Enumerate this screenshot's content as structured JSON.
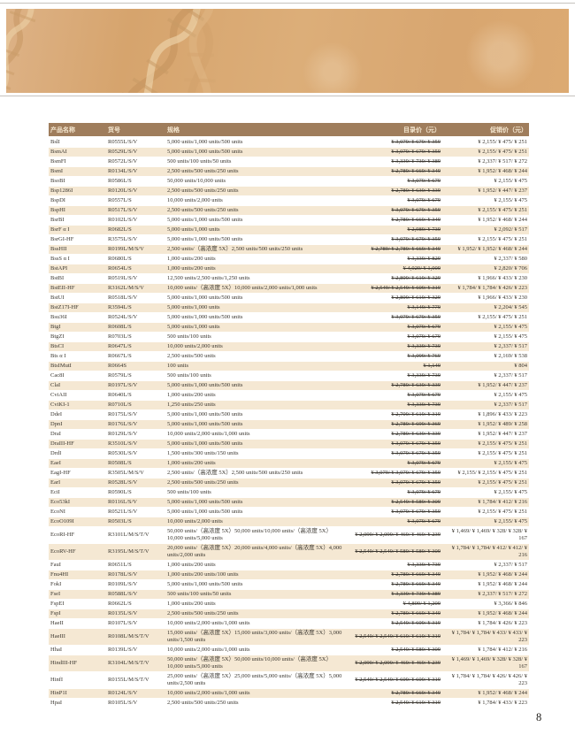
{
  "page": {
    "number": "8"
  },
  "banner": {
    "art": "dna-helix",
    "base_color": "#d9a972",
    "strand_dark": "#c2905a",
    "strand_light": "#eed4aa"
  },
  "colors": {
    "header_bg": "#9f7d5c",
    "header_text": "#f6e9d2",
    "row_alt_bg": "#f5e8d3",
    "body_text": "#3a362f",
    "rule_gray": "#c6c2bd"
  },
  "table": {
    "headers": [
      "产品名称",
      "货号",
      "规格",
      "目录价（元）",
      "促销价（元）"
    ],
    "rows": [
      {
        "name": "BslI",
        "cat": "R0555L/S/V",
        "spec": "5,000 units/1,000 units/500 units",
        "list": "¥ 3,079/ ¥ 679/ ¥ 359",
        "promo": "¥ 2,155/ ¥ 475/ ¥ 251"
      },
      {
        "name": "BsmAI",
        "cat": "R0529L/S/V",
        "spec": "5,000 units/1,000 units/500 units",
        "list": "¥ 3,079/ ¥ 679/ ¥ 359",
        "promo": "¥ 2,155/ ¥ 475/ ¥ 251"
      },
      {
        "name": "BsmFI",
        "cat": "R0572L/S/V",
        "spec": "500 units/100 units/50 units",
        "list": "¥ 3,339/ ¥ 739/ ¥ 389",
        "promo": "¥ 2,337/ ¥ 517/ ¥ 272"
      },
      {
        "name": "BsmI",
        "cat": "R0134L/S/V",
        "spec": "2,500 units/500 units/250 units",
        "list": "¥ 2,789/ ¥ 669/ ¥ 349",
        "promo": "¥ 1,952/ ¥ 468/ ¥ 244"
      },
      {
        "name": "BsoBI",
        "cat": "R0586L/S",
        "spec": "50,000 units/10,000 units",
        "list": "¥ 3,079/ ¥ 679",
        "promo": "¥ 2,155/ ¥ 475"
      },
      {
        "name": "Bsp1286I",
        "cat": "R0120L/S/V",
        "spec": "2,500 units/500 units/250 units",
        "list": "¥ 2,789/ ¥ 639/ ¥ 339",
        "promo": "¥ 1,952/ ¥ 447/ ¥ 237"
      },
      {
        "name": "BspDI",
        "cat": "R0557L/S",
        "spec": "10,000 units/2,000 units",
        "list": "¥ 3,079/ ¥ 679",
        "promo": "¥ 2,155/ ¥ 475"
      },
      {
        "name": "BspHI",
        "cat": "R0517L/S/V",
        "spec": "2,500 units/500 units/250 units",
        "list": "¥ 3,079/ ¥ 679/ ¥ 359",
        "promo": "¥ 2,155/ ¥ 475/ ¥ 251"
      },
      {
        "name": "BsrBI",
        "cat": "R0102L/S/V",
        "spec": "5,000 units/1,000 units/500 units",
        "list": "¥ 2,789/ ¥ 669/ ¥ 349",
        "promo": "¥ 1,952/ ¥ 468/ ¥ 244"
      },
      {
        "name": "BsrF α I",
        "cat": "R0682L/S",
        "spec": "5,000 units/1,000 units",
        "list": "¥ 2,989/ ¥ 739",
        "promo": "¥ 2,092/ ¥ 517"
      },
      {
        "name": "BsrGI-HF",
        "cat": "R3575L/S/V",
        "spec": "5,000 units/1,000 units/500 units",
        "list": "¥ 3,079/ ¥ 679/ ¥ 359",
        "promo": "¥ 2,155/ ¥ 475/ ¥ 251"
      },
      {
        "name": "BssHII",
        "cat": "R0199L/M/S/V",
        "spec": "2,500 units/（高浓度 5X）2,500 units/500 units/250 units",
        "list": "¥ 2,789/ ¥ 2,789/ ¥ 669/ ¥ 349",
        "promo": "¥ 1,952/ ¥ 1,952/ ¥ 468/ ¥ 244"
      },
      {
        "name": "BssS α I",
        "cat": "R0680L/S",
        "spec": "1,000 units/200 units",
        "list": "¥ 3,339/ ¥ 829",
        "promo": "¥ 2,337/ ¥ 580"
      },
      {
        "name": "BstAPI",
        "cat": "R0654L/S",
        "spec": "1,000 units/200 units",
        "list": "¥ 4,029/ ¥ 1,009",
        "promo": "¥ 2,820/ ¥ 706"
      },
      {
        "name": "BstBI",
        "cat": "R0519L/S/V",
        "spec": "12,500 units/2,500 units/1,250 units",
        "list": "¥ 2,809/ ¥ 619/ ¥ 329",
        "promo": "¥ 1,966/ ¥ 433/ ¥ 230"
      },
      {
        "name": "BstEII-HF",
        "cat": "R3162L/M/S/V",
        "spec": "10,000 units/（高浓度 5X）10,000 units/2,000 units/1,000 units",
        "list": "¥ 2,549/ ¥ 2,549/ ¥ 609/ ¥ 319",
        "promo": "¥ 1,784/ ¥ 1,784/ ¥ 426/ ¥ 223"
      },
      {
        "name": "BstUI",
        "cat": "R0518L/S/V",
        "spec": "5,000 units/1,000 units/500 units",
        "list": "¥ 2,809/ ¥ 619/ ¥ 329",
        "promo": "¥ 1,966/ ¥ 433/ ¥ 230"
      },
      {
        "name": "BstZ17I-HF",
        "cat": "R3594L/S",
        "spec": "5,000 units/1,000 units",
        "list": "¥ 3,149/ ¥ 779",
        "promo": "¥ 2,204/ ¥ 545"
      },
      {
        "name": "Bsu36I",
        "cat": "R0524L/S/V",
        "spec": "5,000 units/1,000 units/500 units",
        "list": "¥ 3,079/ ¥ 679/ ¥ 359",
        "promo": "¥ 2,155/ ¥ 475/ ¥ 251"
      },
      {
        "name": "BtgI",
        "cat": "R0608L/S",
        "spec": "5,000 units/1,000 units",
        "list": "¥ 3,079/ ¥ 679",
        "promo": "¥ 2,155/ ¥ 475"
      },
      {
        "name": "BtgZI",
        "cat": "R0703L/S",
        "spec": "500 units/100 units",
        "list": "¥ 3,079/ ¥ 679",
        "promo": "¥ 2,155/ ¥ 475"
      },
      {
        "name": "BtsCI",
        "cat": "R0647L/S",
        "spec": "10,000 units/2,000 units",
        "list": "¥ 3,339/ ¥ 739",
        "promo": "¥ 2,337/ ¥ 517"
      },
      {
        "name": "Bts α I",
        "cat": "R0667L/S",
        "spec": "2,500 units/500 units",
        "list": "¥ 3,099/ ¥ 769",
        "promo": "¥ 2,169/ ¥ 538"
      },
      {
        "name": "BtsIMutI",
        "cat": "R0664S",
        "spec": "100 units",
        "list": "¥ 1,149",
        "promo": "¥ 804"
      },
      {
        "name": "Cac8I",
        "cat": "R0579L/S",
        "spec": "500 units/100 units",
        "list": "¥ 3,339/ ¥ 739",
        "promo": "¥ 2,337/ ¥ 517"
      },
      {
        "name": "ClaI",
        "cat": "R0197L/S/V",
        "spec": "5,000 units/1,000 units/500 units",
        "list": "¥ 2,789/ ¥ 639/ ¥ 339",
        "promo": "¥ 1,952/ ¥ 447/ ¥ 237"
      },
      {
        "name": "CviAII",
        "cat": "R0640L/S",
        "spec": "1,000 units/200 units",
        "list": "¥ 3,079/ ¥ 679",
        "promo": "¥ 2,155/ ¥ 475"
      },
      {
        "name": "CviKI-1",
        "cat": "R0710L/S",
        "spec": "1,250 units/250 units",
        "list": "¥ 3,339/ ¥ 739",
        "promo": "¥ 2,337/ ¥ 517"
      },
      {
        "name": "DdeI",
        "cat": "R0175L/S/V",
        "spec": "5,000 units/1,000 units/500 units",
        "list": "¥ 2,709/ ¥ 619/ ¥ 319",
        "promo": "¥ 1,896/ ¥ 433/ ¥ 223"
      },
      {
        "name": "DpnI",
        "cat": "R0176L/S/V",
        "spec": "5,000 units/1,000 units/500 units",
        "list": "¥ 2,789/ ¥ 699/ ¥ 369",
        "promo": "¥ 1,952/ ¥ 489/ ¥ 258"
      },
      {
        "name": "DraI",
        "cat": "R0129L/S/V",
        "spec": "10,000 units/2,000 units/1,000 units",
        "list": "¥ 2,789/ ¥ 639/ ¥ 339",
        "promo": "¥ 1,952/ ¥ 447/ ¥ 237"
      },
      {
        "name": "DraIII-HF",
        "cat": "R3510L/S/V",
        "spec": "5,000 units/1,000 units/500 units",
        "list": "¥ 3,079/ ¥ 679/ ¥ 359",
        "promo": "¥ 2,155/ ¥ 475/ ¥ 251"
      },
      {
        "name": "DrdI",
        "cat": "R0530L/S/V",
        "spec": "1,500 units/300 units/150 units",
        "list": "¥ 3,079/ ¥ 679/ ¥ 359",
        "promo": "¥ 2,155/ ¥ 475/ ¥ 251"
      },
      {
        "name": "EaeI",
        "cat": "R0508L/S",
        "spec": "1,000 units/200 units",
        "list": "¥ 3,079/ ¥ 679",
        "promo": "¥ 2,155/ ¥ 475"
      },
      {
        "name": "EagI-HF",
        "cat": "R3505L/M/S/V",
        "spec": "2,500 units/（高浓度 5X）2,500 units/500 units/250 units",
        "list": "¥ 3,079/ ¥ 3,079/ ¥ 679/ ¥ 359",
        "promo": "¥ 2,155/ ¥ 2,155/ ¥ 475/ ¥ 251"
      },
      {
        "name": "EarI",
        "cat": "R0528L/S/V",
        "spec": "2,500 units/500 units/250 units",
        "list": "¥ 3,079/ ¥ 679/ ¥ 359",
        "promo": "¥ 2,155/ ¥ 475/ ¥ 251"
      },
      {
        "name": "EciI",
        "cat": "R0590L/S",
        "spec": "500 units/100 units",
        "list": "¥ 3,079/ ¥ 679",
        "promo": "¥ 2,155/ ¥ 475"
      },
      {
        "name": "Eco53kI",
        "cat": "R0116L/S/V",
        "spec": "5,000 units/1,000 units/500 units",
        "list": "¥ 2,549/ ¥ 589/ ¥ 309",
        "promo": "¥ 1,784/ ¥ 412/ ¥ 216"
      },
      {
        "name": "EcoNI",
        "cat": "R0521L/S/V",
        "spec": "5,000 units/1,000 units/500 units",
        "list": "¥ 3,079/ ¥ 679/ ¥ 359",
        "promo": "¥ 2,155/ ¥ 475/ ¥ 251"
      },
      {
        "name": "EcoO109I",
        "cat": "R0503L/S",
        "spec": "10,000 units/2,000 units",
        "list": "¥ 3,079/ ¥ 679",
        "promo": "¥ 2,155/ ¥ 475"
      },
      {
        "name": "EcoRI-HF",
        "cat": "R3101L/M/S/T/V",
        "spec": "50,000 units/（高浓度 5X）50,000 units/10,000 units/（高浓度 5X）10,000 units/5,000 units",
        "list": "¥ 2,099/ ¥ 2,099/ ¥ 469/ ¥ 469/ ¥ 239",
        "promo": "¥ 1,469/ ¥ 1,469/ ¥ 328/ ¥ 328/ ¥ 167"
      },
      {
        "name": "EcoRV-HF",
        "cat": "R3195L/M/S/T/V",
        "spec": "20,000 units/（高浓度 5X）20,000 units/4,000 units/（高浓度 5X）4,000 units/2,000 units",
        "list": "¥ 2,549/ ¥ 2,549/ ¥ 589/ ¥ 589/ ¥ 309",
        "promo": "¥ 1,784/ ¥ 1,784/ ¥ 412/ ¥ 412/ ¥ 216"
      },
      {
        "name": "FauI",
        "cat": "R0651L/S",
        "spec": "1,000 units/200 units",
        "list": "¥ 3,339/ ¥ 739",
        "promo": "¥ 2,337/ ¥ 517"
      },
      {
        "name": "Fnu4HI",
        "cat": "R0178L/S/V",
        "spec": "1,000 units/200 units/100 units",
        "list": "¥ 2,789/ ¥ 669/ ¥ 349",
        "promo": "¥ 1,952/ ¥ 468/ ¥ 244"
      },
      {
        "name": "FokI",
        "cat": "R0109L/S/V",
        "spec": "5,000 units/1,000 units/500 units",
        "list": "¥ 2,789/ ¥ 669/ ¥ 349",
        "promo": "¥ 1,952/ ¥ 468/ ¥ 244"
      },
      {
        "name": "FseI",
        "cat": "R0588L/S/V",
        "spec": "500 units/100 units/50 units",
        "list": "¥ 3,339/ ¥ 739/ ¥ 389",
        "promo": "¥ 2,337/ ¥ 517/ ¥ 272"
      },
      {
        "name": "FspEI",
        "cat": "R0662L/S",
        "spec": "1,000 units/200 units",
        "list": "¥ 4,809/ ¥ 1,209",
        "promo": "¥ 3,366/ ¥ 846"
      },
      {
        "name": "FspI",
        "cat": "R0135L/S/V",
        "spec": "2,500 units/500 units/250 units",
        "list": "¥ 2,789/ ¥ 669/ ¥ 349",
        "promo": "¥ 1,952/ ¥ 468/ ¥ 244"
      },
      {
        "name": "HaeII",
        "cat": "R0107L/S/V",
        "spec": "10,000 units/2,000 units/1,000 units",
        "list": "¥ 2,549/ ¥ 609/ ¥ 319",
        "promo": "¥ 1,784/ ¥ 426/ ¥ 223"
      },
      {
        "name": "HaeIII",
        "cat": "R0108L/M/S/T/V",
        "spec": "15,000 units/（高浓度 5X）15,000 units/3,000 units/（高浓度 5X）3,000 units/1,500 units",
        "list": "¥ 2,549/ ¥ 2,549/ ¥ 619/ ¥ 619/ ¥ 319",
        "promo": "¥ 1,784/ ¥ 1,784/ ¥ 433/ ¥ 433/ ¥ 223"
      },
      {
        "name": "HhaI",
        "cat": "R0139L/S/V",
        "spec": "10,000 units/2,000 units/1,000 units",
        "list": "¥ 2,549/ ¥ 589/ ¥ 309",
        "promo": "¥ 1,784/ ¥ 412/ ¥ 216"
      },
      {
        "name": "HindIII-HF",
        "cat": "R3104L/M/S/T/V",
        "spec": "50,000 units/（高浓度 5X）50,000 units/10,000 units/（高浓度 5X）10,000 units/5,000 units",
        "list": "¥ 2,099/ ¥ 2,099/ ¥ 469/ ¥ 469/ ¥ 239",
        "promo": "¥ 1,469/ ¥ 1,469/ ¥ 328/ ¥ 328/ ¥ 167"
      },
      {
        "name": "HinfI",
        "cat": "R0155L/M/S/T/V",
        "spec": "25,000 units/（高浓度 5X）25,000 units/5,000 units/（高浓度 5X）5,000 units/2,500 units",
        "list": "¥ 2,549/ ¥ 2,549/ ¥ 609/ ¥ 609/ ¥ 319",
        "promo": "¥ 1,784/ ¥ 1,784/ ¥ 426/ ¥ 426/ ¥ 223"
      },
      {
        "name": "HinP1I",
        "cat": "R0124L/S/V",
        "spec": "10,000 units/2,000 units/1,000 units",
        "list": "¥ 2,789/ ¥ 669/ ¥ 349",
        "promo": "¥ 1,952/ ¥ 468/ ¥ 244"
      },
      {
        "name": "HpaI",
        "cat": "R0105L/S/V",
        "spec": "2,500 units/500 units/250 units",
        "list": "¥ 2,549/ ¥ 619/ ¥ 319",
        "promo": "¥ 1,784/ ¥ 433/ ¥ 223"
      }
    ]
  }
}
